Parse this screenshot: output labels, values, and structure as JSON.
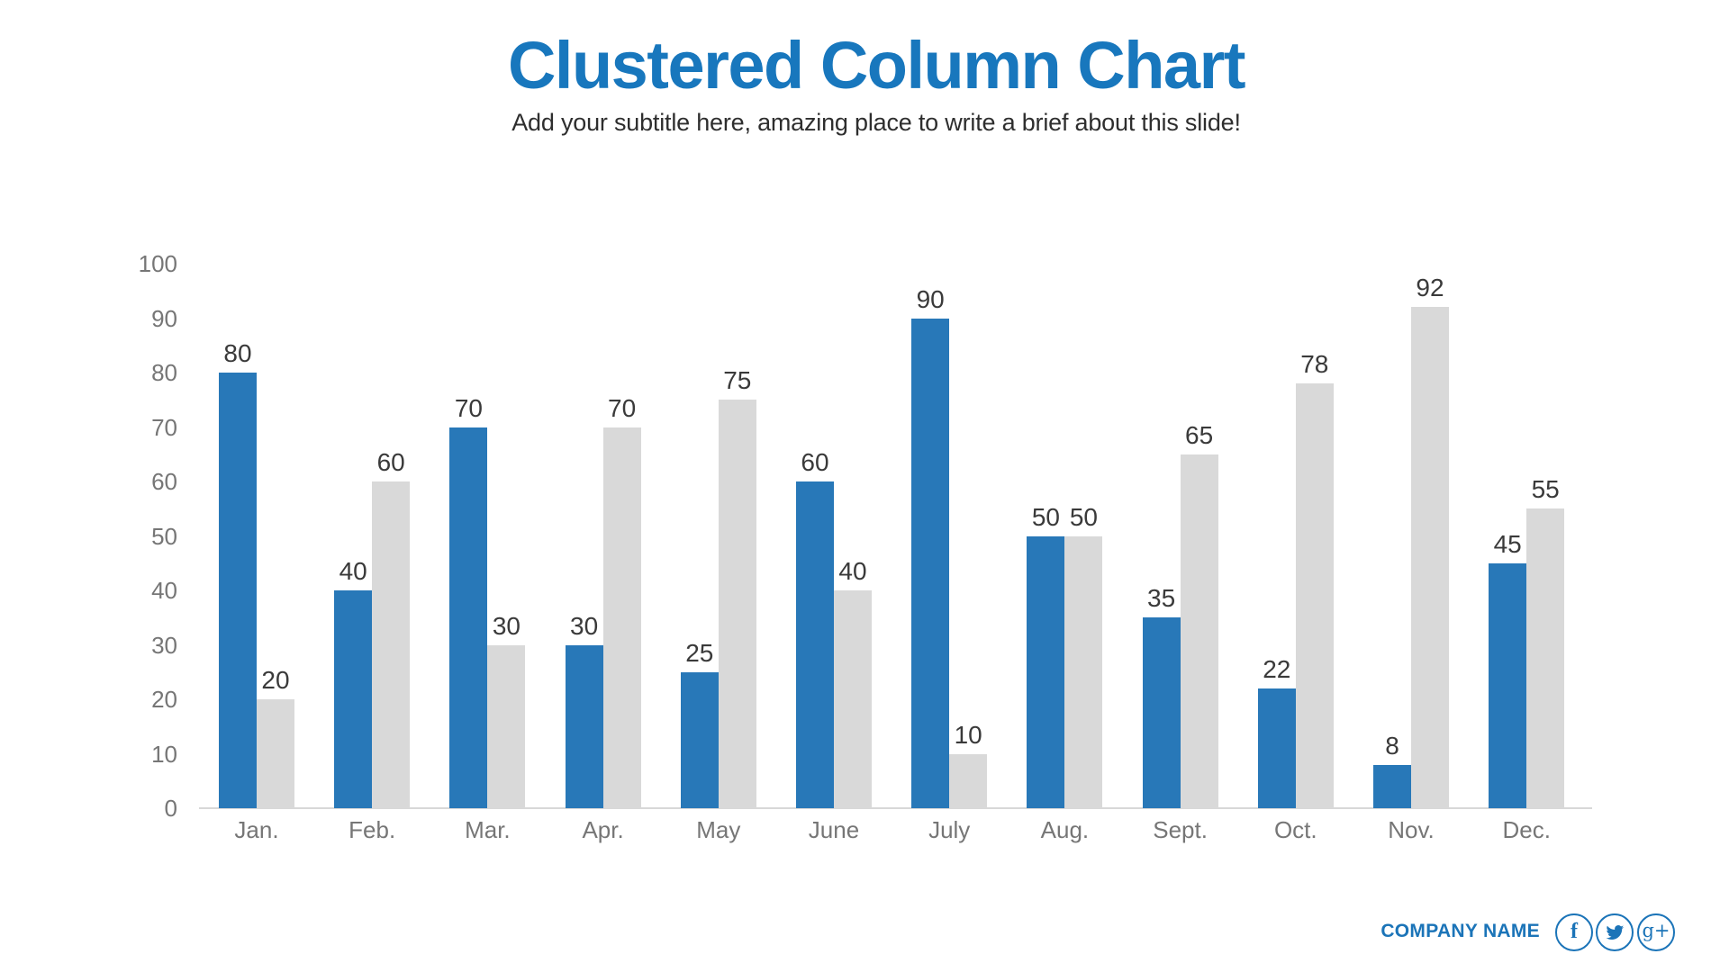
{
  "header": {
    "title": "Clustered Column Chart",
    "subtitle": "Add your subtitle here, amazing place to write a brief about this slide!"
  },
  "chart_data": {
    "type": "bar",
    "title": "Clustered Column Chart",
    "categories": [
      "Jan.",
      "Feb.",
      "Mar.",
      "Apr.",
      "May",
      "June",
      "July",
      "Aug.",
      "Sept.",
      "Oct.",
      "Nov.",
      "Dec."
    ],
    "series": [
      {
        "name": "blue",
        "color": "#2878b8",
        "values": [
          80,
          40,
          70,
          30,
          25,
          60,
          90,
          50,
          35,
          22,
          8,
          45
        ]
      },
      {
        "name": "gray",
        "color": "#d9d9d9",
        "values": [
          20,
          60,
          30,
          70,
          75,
          40,
          10,
          50,
          65,
          78,
          92,
          55
        ]
      }
    ],
    "xlabel": "",
    "ylabel": "",
    "ylim": [
      0,
      100
    ],
    "yticks": [
      0,
      10,
      20,
      30,
      40,
      50,
      60,
      70,
      80,
      90,
      100
    ],
    "grid": false,
    "legend": "none",
    "value_labels": true
  },
  "footer": {
    "company_name": "COMPANY NAME",
    "social": [
      {
        "icon": "facebook-icon",
        "glyph": "f"
      },
      {
        "icon": "twitter-icon",
        "glyph": "twitter-bird"
      },
      {
        "icon": "googleplus-icon",
        "glyph": "g+"
      }
    ]
  },
  "colors": {
    "accent_blue": "#1877bd",
    "bar_blue": "#2878b8",
    "bar_gray": "#d9d9d9",
    "axis_line": "#d8d8d8",
    "tick_text": "#767676",
    "value_text": "#3a3a3a",
    "subtitle_text": "#2e2e2e",
    "footer_blue": "#1b74b8"
  }
}
